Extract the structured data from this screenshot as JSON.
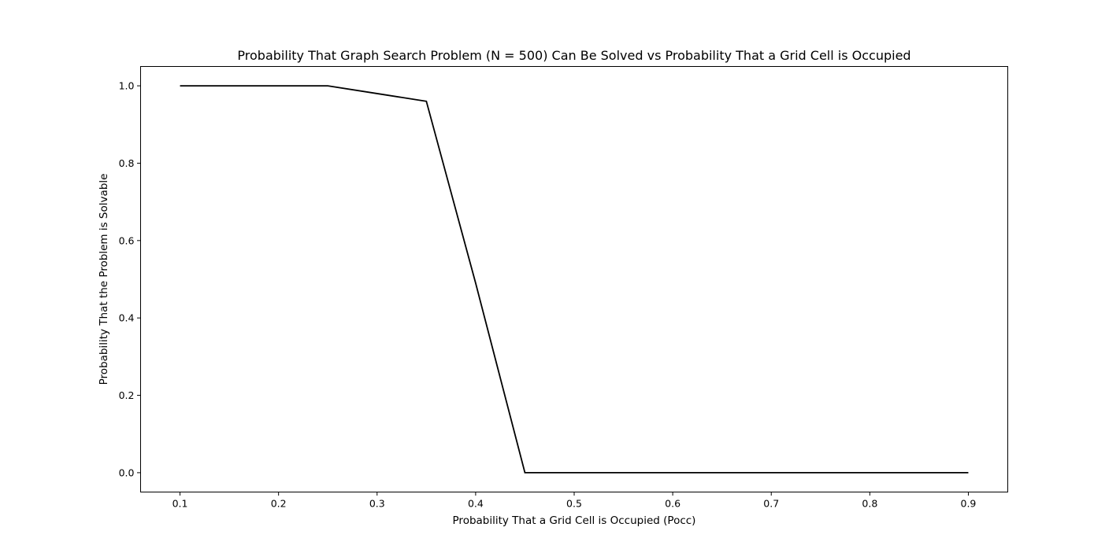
{
  "chart_data": {
    "type": "line",
    "title": "Probability That Graph Search Problem (N = 500) Can Be Solved vs Probability That a Grid Cell is Occupied",
    "xlabel": "Probability That a Grid Cell is Occupied (Pocc)",
    "ylabel": "Probability That the Problem is Solvable",
    "xlim": [
      0.06,
      0.94
    ],
    "ylim": [
      -0.05,
      1.05
    ],
    "x_ticks": [
      0.1,
      0.2,
      0.3,
      0.4,
      0.5,
      0.6,
      0.7,
      0.8,
      0.9
    ],
    "x_tick_labels": [
      "0.1",
      "0.2",
      "0.3",
      "0.4",
      "0.5",
      "0.6",
      "0.7",
      "0.8",
      "0.9"
    ],
    "y_ticks": [
      0.0,
      0.2,
      0.4,
      0.6,
      0.8,
      1.0
    ],
    "y_tick_labels": [
      "0.0",
      "0.2",
      "0.4",
      "0.6",
      "0.8",
      "1.0"
    ],
    "grid": false,
    "series": [
      {
        "color": "#000000",
        "x": [
          0.1,
          0.15,
          0.2,
          0.25,
          0.3,
          0.35,
          0.4,
          0.45,
          0.5,
          0.55,
          0.6,
          0.65,
          0.7,
          0.75,
          0.8,
          0.85,
          0.9
        ],
        "y": [
          1.0,
          1.0,
          1.0,
          1.0,
          0.98,
          0.96,
          0.49,
          0.0,
          0.0,
          0.0,
          0.0,
          0.0,
          0.0,
          0.0,
          0.0,
          0.0,
          0.0
        ]
      }
    ]
  }
}
